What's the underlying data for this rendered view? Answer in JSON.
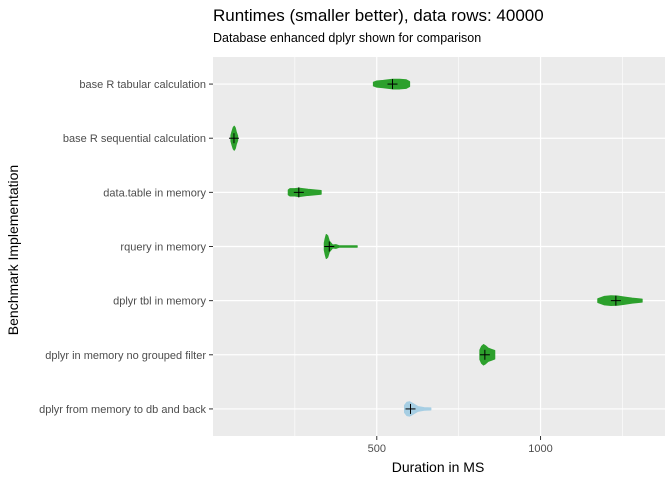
{
  "chart_data": {
    "type": "violin",
    "title": "Runtimes (smaller better), data rows: 40000",
    "subtitle": "Database enhanced dplyr shown for comparison",
    "xlabel": "Duration in MS",
    "ylabel": "Benchmark Implementation",
    "xlim": [
      0,
      1380
    ],
    "x_ticks": [
      500,
      1000
    ],
    "grid": true,
    "categories": [
      "base R tabular calculation",
      "base R sequential calculation",
      "data.table in memory",
      "rquery in memory",
      "dplyr tbl in memory",
      "dplyr in memory no grouped filter",
      "dplyr from memory to db and back"
    ],
    "series": [
      {
        "category": "base R tabular calculation",
        "min": 490,
        "max": 600,
        "mean": 548,
        "color": "#2ca02c",
        "profile": [
          [
            490,
            0.15
          ],
          [
            500,
            0.25
          ],
          [
            520,
            0.3
          ],
          [
            548,
            0.4
          ],
          [
            570,
            0.4
          ],
          [
            590,
            0.35
          ],
          [
            600,
            0.2
          ]
        ]
      },
      {
        "category": "base R sequential calculation",
        "min": 55,
        "max": 75,
        "mean": 64,
        "color": "#2ca02c",
        "profile": [
          [
            55,
            0.25
          ],
          [
            58,
            0.55
          ],
          [
            62,
            0.9
          ],
          [
            65,
            1.0
          ],
          [
            68,
            0.85
          ],
          [
            71,
            0.5
          ],
          [
            75,
            0.2
          ]
        ]
      },
      {
        "category": "data.table in memory",
        "min": 230,
        "max": 330,
        "mean": 262,
        "color": "#2ca02c",
        "profile": [
          [
            230,
            0.2
          ],
          [
            235,
            0.3
          ],
          [
            250,
            0.3
          ],
          [
            262,
            0.35
          ],
          [
            290,
            0.25
          ],
          [
            310,
            0.2
          ],
          [
            330,
            0.15
          ]
        ]
      },
      {
        "category": "rquery in memory",
        "min": 340,
        "max": 440,
        "mean": 355,
        "color": "#2ca02c",
        "profile": [
          [
            340,
            0.3
          ],
          [
            343,
            0.7
          ],
          [
            346,
            1.0
          ],
          [
            350,
            0.9
          ],
          [
            355,
            0.45
          ],
          [
            365,
            0.12
          ],
          [
            375,
            0.15
          ],
          [
            385,
            0.06
          ],
          [
            440,
            0.05
          ]
        ]
      },
      {
        "category": "dplyr tbl in memory",
        "min": 1175,
        "max": 1310,
        "mean": 1230,
        "color": "#2ca02c",
        "profile": [
          [
            1175,
            0.15
          ],
          [
            1195,
            0.35
          ],
          [
            1215,
            0.4
          ],
          [
            1235,
            0.38
          ],
          [
            1255,
            0.3
          ],
          [
            1280,
            0.2
          ],
          [
            1310,
            0.12
          ]
        ]
      },
      {
        "category": "dplyr in memory no grouped filter",
        "min": 815,
        "max": 860,
        "mean": 830,
        "color": "#2ca02c",
        "profile": [
          [
            815,
            0.4
          ],
          [
            820,
            0.7
          ],
          [
            826,
            0.85
          ],
          [
            832,
            0.75
          ],
          [
            840,
            0.55
          ],
          [
            850,
            0.45
          ],
          [
            860,
            0.35
          ]
        ]
      },
      {
        "category": "dplyr from memory to db and back",
        "min": 585,
        "max": 665,
        "mean": 603,
        "color": "#a6cee3",
        "profile": [
          [
            585,
            0.3
          ],
          [
            592,
            0.55
          ],
          [
            600,
            0.6
          ],
          [
            610,
            0.45
          ],
          [
            625,
            0.2
          ],
          [
            645,
            0.1
          ],
          [
            665,
            0.08
          ]
        ]
      }
    ]
  }
}
